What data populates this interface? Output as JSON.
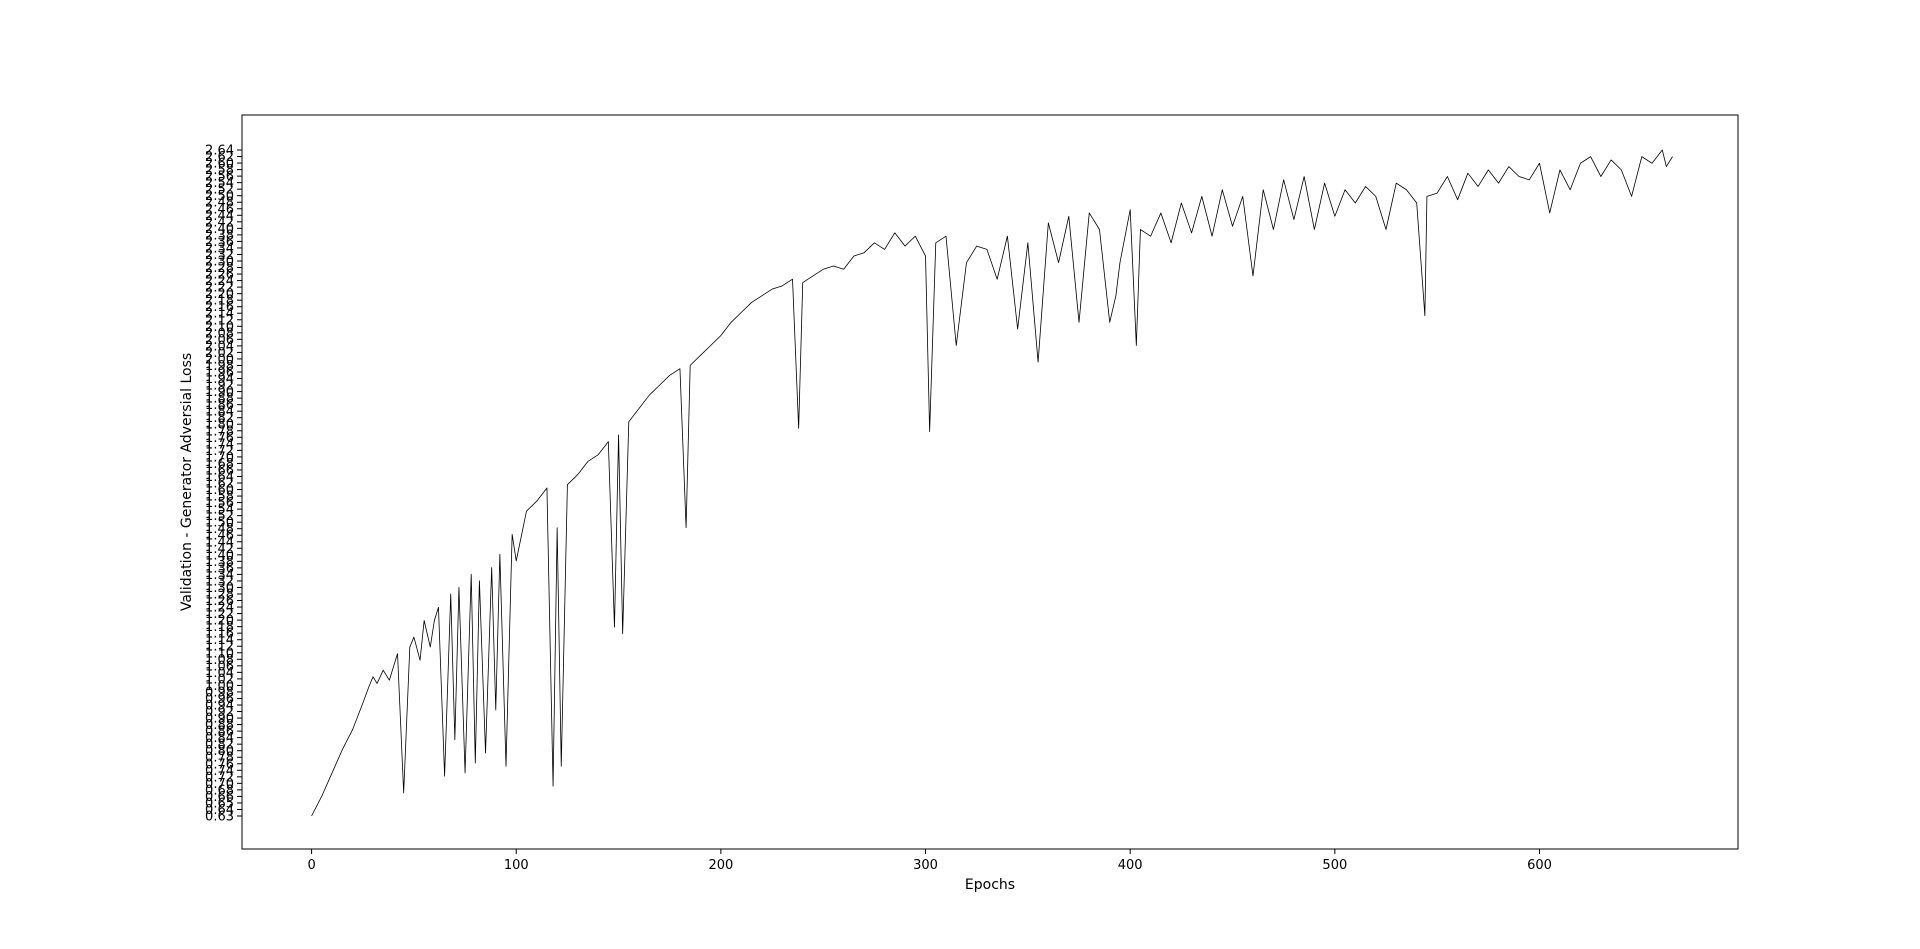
{
  "chart_data": {
    "type": "line",
    "title": "",
    "xlabel": "Epochs",
    "ylabel": "Validation - Generator Adversial Loss",
    "xlim": [
      -34,
      697
    ],
    "x_ticks": [
      0,
      100,
      200,
      300,
      400,
      500,
      600
    ],
    "y_range": [
      0.63,
      2.64
    ],
    "y_tick_labels": [
      "0.63",
      "0.64",
      "0.65",
      "0.66",
      "0.68",
      "0.70",
      "0.72",
      "0.74",
      "0.76",
      "0.78",
      "0.80",
      "0.82",
      "0.84",
      "0.86",
      "0.88",
      "0.90",
      "0.92",
      "0.94",
      "0.96",
      "0.98",
      "1.00",
      "1.02",
      "1.04",
      "1.06",
      "1.08",
      "1.10",
      "1.12",
      "1.14",
      "1.16",
      "1.18",
      "1.20",
      "1.22",
      "1.24",
      "1.26",
      "1.28",
      "1.30",
      "1.32",
      "1.34",
      "1.36",
      "1.38",
      "1.40",
      "1.42",
      "1.44",
      "1.46",
      "1.48",
      "1.50",
      "1.52",
      "1.54",
      "1.56",
      "1.58",
      "1.60",
      "1.62",
      "1.64",
      "1.66",
      "1.68",
      "1.70",
      "1.72",
      "1.74",
      "1.76",
      "1.78",
      "1.80",
      "1.82",
      "1.84",
      "1.86",
      "1.88",
      "1.90",
      "1.92",
      "1.94",
      "1.96",
      "1.98",
      "2.00",
      "2.02",
      "2.04",
      "2.06",
      "2.08",
      "2.10",
      "2.12",
      "2.14",
      "2.16",
      "2.18",
      "2.20",
      "2.22",
      "2.24",
      "2.26",
      "2.28",
      "2.30",
      "2.32",
      "2.34",
      "2.36",
      "2.38",
      "2.40",
      "2.42",
      "2.44",
      "2.46",
      "2.48",
      "2.50",
      "2.52",
      "2.54",
      "2.56",
      "2.58",
      "2.60",
      "2.62",
      "2.64"
    ],
    "grid": false,
    "legend": "none",
    "line_color": "#000000",
    "series": [
      {
        "x": [
          0,
          5,
          10,
          15,
          20,
          25,
          28,
          30,
          32,
          35,
          38,
          40,
          42,
          45,
          48,
          50,
          53,
          55,
          58,
          60,
          62,
          65,
          68,
          70,
          72,
          75,
          78,
          80,
          82,
          85,
          88,
          90,
          92,
          95,
          98,
          100,
          105,
          110,
          115,
          118,
          120,
          122,
          125,
          130,
          135,
          140,
          145,
          148,
          150,
          152,
          155,
          160,
          165,
          170,
          175,
          180,
          183,
          185,
          190,
          195,
          200,
          205,
          210,
          215,
          220,
          225,
          230,
          235,
          238,
          240,
          245,
          250,
          255,
          260,
          265,
          270,
          275,
          280,
          285,
          290,
          295,
          300,
          302,
          305,
          310,
          315,
          320,
          325,
          330,
          335,
          340,
          345,
          350,
          355,
          360,
          365,
          370,
          375,
          380,
          385,
          390,
          393,
          395,
          400,
          403,
          405,
          410,
          415,
          420,
          425,
          430,
          435,
          440,
          445,
          450,
          455,
          460,
          465,
          470,
          475,
          480,
          485,
          490,
          495,
          500,
          505,
          510,
          515,
          520,
          525,
          530,
          535,
          540,
          544,
          545,
          550,
          555,
          560,
          565,
          570,
          575,
          580,
          585,
          590,
          595,
          600,
          605,
          610,
          615,
          620,
          625,
          630,
          635,
          640,
          645,
          650,
          655,
          660,
          662,
          665
        ],
        "values": [
          0.63,
          0.69,
          0.76,
          0.83,
          0.89,
          0.97,
          1.02,
          1.05,
          1.03,
          1.07,
          1.04,
          1.08,
          1.12,
          0.7,
          1.14,
          1.17,
          1.1,
          1.22,
          1.14,
          1.22,
          1.26,
          0.75,
          1.3,
          0.86,
          1.32,
          0.76,
          1.36,
          0.79,
          1.34,
          0.82,
          1.38,
          0.95,
          1.42,
          0.78,
          1.48,
          1.4,
          1.55,
          1.58,
          1.62,
          0.72,
          1.5,
          0.78,
          1.63,
          1.66,
          1.7,
          1.72,
          1.76,
          1.2,
          1.78,
          1.18,
          1.82,
          1.86,
          1.9,
          1.93,
          1.96,
          1.98,
          1.5,
          1.99,
          2.02,
          2.05,
          2.08,
          2.12,
          2.15,
          2.18,
          2.2,
          2.22,
          2.23,
          2.25,
          1.8,
          2.24,
          2.26,
          2.28,
          2.29,
          2.28,
          2.32,
          2.33,
          2.36,
          2.34,
          2.39,
          2.35,
          2.38,
          2.32,
          1.79,
          2.36,
          2.38,
          2.05,
          2.3,
          2.35,
          2.34,
          2.25,
          2.38,
          2.1,
          2.36,
          2.0,
          2.42,
          2.3,
          2.44,
          2.12,
          2.45,
          2.4,
          2.12,
          2.2,
          2.3,
          2.46,
          2.05,
          2.4,
          2.38,
          2.45,
          2.36,
          2.48,
          2.39,
          2.5,
          2.38,
          2.52,
          2.41,
          2.5,
          2.26,
          2.52,
          2.4,
          2.55,
          2.43,
          2.56,
          2.4,
          2.54,
          2.44,
          2.52,
          2.48,
          2.53,
          2.5,
          2.4,
          2.54,
          2.52,
          2.48,
          2.14,
          2.5,
          2.51,
          2.56,
          2.49,
          2.57,
          2.53,
          2.58,
          2.54,
          2.59,
          2.56,
          2.55,
          2.6,
          2.45,
          2.58,
          2.52,
          2.6,
          2.62,
          2.56,
          2.61,
          2.58,
          2.5,
          2.62,
          2.6,
          2.64,
          2.59,
          2.62
        ]
      }
    ]
  }
}
